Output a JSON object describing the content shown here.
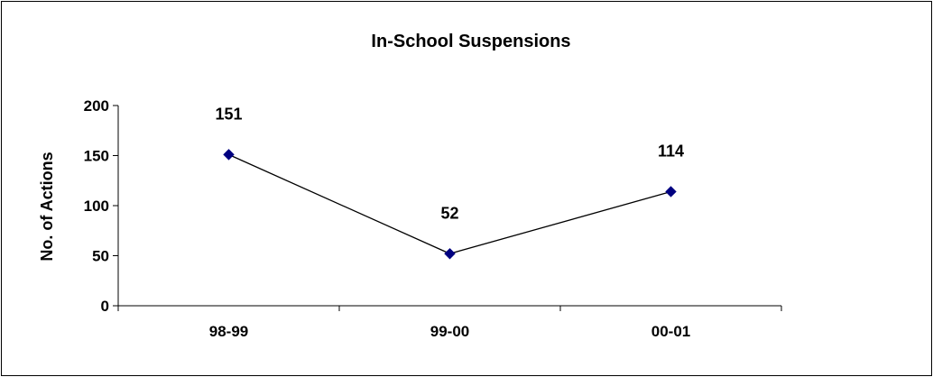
{
  "chart_data": {
    "type": "line",
    "title": "In-School Suspensions",
    "xlabel": "",
    "ylabel": "No. of Actions",
    "categories": [
      "98-99",
      "99-00",
      "00-01"
    ],
    "series": [
      {
        "values": [
          151,
          52,
          114
        ]
      }
    ],
    "data_labels": [
      "151",
      "52",
      "114"
    ],
    "ylim": [
      0,
      200
    ],
    "yticks": [
      0,
      50,
      100,
      150,
      200
    ],
    "ytick_labels": [
      "0",
      "50",
      "100",
      "150",
      "200"
    ],
    "grid": false,
    "legend": "none",
    "colors": {
      "line": "#000000",
      "marker": "#000080"
    }
  }
}
